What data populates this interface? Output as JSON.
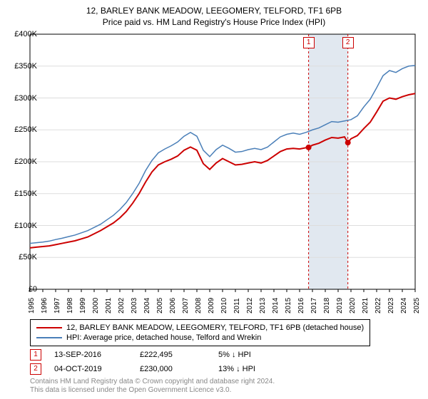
{
  "title_line1": "12, BARLEY BANK MEADOW, LEEGOMERY, TELFORD, TF1 6PB",
  "title_line2": "Price paid vs. HM Land Registry's House Price Index (HPI)",
  "chart": {
    "type": "line",
    "background_color": "#ffffff",
    "grid_color": "#dddddd",
    "y_axis": {
      "min": 0,
      "max": 400000,
      "tick_step": 50000,
      "ticks": [
        0,
        50000,
        100000,
        150000,
        200000,
        250000,
        300000,
        350000,
        400000
      ],
      "tick_labels": [
        "£0",
        "£50K",
        "£100K",
        "£150K",
        "£200K",
        "£250K",
        "£300K",
        "£350K",
        "£400K"
      ],
      "label_fontsize": 11
    },
    "x_axis": {
      "min": 1995,
      "max": 2025,
      "ticks": [
        1995,
        1996,
        1997,
        1998,
        1999,
        2000,
        2001,
        2002,
        2003,
        2004,
        2005,
        2006,
        2007,
        2008,
        2009,
        2010,
        2011,
        2012,
        2013,
        2014,
        2015,
        2016,
        2017,
        2018,
        2019,
        2020,
        2021,
        2022,
        2023,
        2024,
        2025
      ],
      "label_fontsize": 10
    },
    "shaded_region": {
      "start": 2016.7,
      "end": 2019.76,
      "color": "#e1e8f0"
    },
    "sales": [
      {
        "x": 2016.7,
        "label": "1",
        "price_y": 222495
      },
      {
        "x": 2019.76,
        "label": "2",
        "price_y": 230000
      }
    ],
    "series": [
      {
        "name": "property",
        "color": "#cc0000",
        "width": 2,
        "points": [
          [
            1995,
            65000
          ],
          [
            1995.5,
            66000
          ],
          [
            1996,
            67000
          ],
          [
            1996.5,
            68000
          ],
          [
            1997,
            70000
          ],
          [
            1997.5,
            72000
          ],
          [
            1998,
            74000
          ],
          [
            1998.5,
            76000
          ],
          [
            1999,
            79000
          ],
          [
            1999.5,
            82000
          ],
          [
            2000,
            87000
          ],
          [
            2000.5,
            92000
          ],
          [
            2001,
            98000
          ],
          [
            2001.5,
            104000
          ],
          [
            2002,
            112000
          ],
          [
            2002.5,
            122000
          ],
          [
            2003,
            135000
          ],
          [
            2003.5,
            150000
          ],
          [
            2004,
            168000
          ],
          [
            2004.5,
            184000
          ],
          [
            2005,
            195000
          ],
          [
            2005.5,
            200000
          ],
          [
            2006,
            204000
          ],
          [
            2006.5,
            209000
          ],
          [
            2007,
            218000
          ],
          [
            2007.5,
            223000
          ],
          [
            2008,
            218000
          ],
          [
            2008.5,
            197000
          ],
          [
            2009,
            188000
          ],
          [
            2009.5,
            198000
          ],
          [
            2010,
            205000
          ],
          [
            2010.5,
            200000
          ],
          [
            2011,
            195000
          ],
          [
            2011.5,
            196000
          ],
          [
            2012,
            198000
          ],
          [
            2012.5,
            200000
          ],
          [
            2013,
            198000
          ],
          [
            2013.5,
            202000
          ],
          [
            2014,
            209000
          ],
          [
            2014.5,
            216000
          ],
          [
            2015,
            220000
          ],
          [
            2015.5,
            221000
          ],
          [
            2016,
            220000
          ],
          [
            2016.5,
            222000
          ],
          [
            2016.7,
            222495
          ],
          [
            2017,
            226000
          ],
          [
            2017.5,
            229000
          ],
          [
            2018,
            234000
          ],
          [
            2018.5,
            238000
          ],
          [
            2019,
            237000
          ],
          [
            2019.5,
            239000
          ],
          [
            2019.76,
            230000
          ],
          [
            2020,
            236000
          ],
          [
            2020.5,
            241000
          ],
          [
            2021,
            252000
          ],
          [
            2021.5,
            262000
          ],
          [
            2022,
            278000
          ],
          [
            2022.5,
            295000
          ],
          [
            2023,
            300000
          ],
          [
            2023.5,
            298000
          ],
          [
            2024,
            302000
          ],
          [
            2024.5,
            305000
          ],
          [
            2025,
            307000
          ]
        ]
      },
      {
        "name": "hpi",
        "color": "#4a7fb8",
        "width": 1.5,
        "points": [
          [
            1995,
            72000
          ],
          [
            1995.5,
            73000
          ],
          [
            1996,
            74000
          ],
          [
            1996.5,
            75500
          ],
          [
            1997,
            78000
          ],
          [
            1997.5,
            80000
          ],
          [
            1998,
            82500
          ],
          [
            1998.5,
            85000
          ],
          [
            1999,
            88500
          ],
          [
            1999.5,
            92000
          ],
          [
            2000,
            97000
          ],
          [
            2000.5,
            102000
          ],
          [
            2001,
            109000
          ],
          [
            2001.5,
            116000
          ],
          [
            2002,
            125000
          ],
          [
            2002.5,
            136000
          ],
          [
            2003,
            150000
          ],
          [
            2003.5,
            166000
          ],
          [
            2004,
            186000
          ],
          [
            2004.5,
            202000
          ],
          [
            2005,
            214000
          ],
          [
            2005.5,
            220000
          ],
          [
            2006,
            225000
          ],
          [
            2006.5,
            231000
          ],
          [
            2007,
            240000
          ],
          [
            2007.5,
            246000
          ],
          [
            2008,
            240000
          ],
          [
            2008.5,
            218000
          ],
          [
            2009,
            208000
          ],
          [
            2009.5,
            219000
          ],
          [
            2010,
            226000
          ],
          [
            2010.5,
            221000
          ],
          [
            2011,
            215000
          ],
          [
            2011.5,
            216000
          ],
          [
            2012,
            219000
          ],
          [
            2012.5,
            221000
          ],
          [
            2013,
            219000
          ],
          [
            2013.5,
            223000
          ],
          [
            2014,
            231000
          ],
          [
            2014.5,
            239000
          ],
          [
            2015,
            243000
          ],
          [
            2015.5,
            245000
          ],
          [
            2016,
            243000
          ],
          [
            2016.5,
            246000
          ],
          [
            2017,
            250000
          ],
          [
            2017.5,
            253000
          ],
          [
            2018,
            258000
          ],
          [
            2018.5,
            263000
          ],
          [
            2019,
            262000
          ],
          [
            2019.5,
            264000
          ],
          [
            2020,
            266000
          ],
          [
            2020.5,
            272000
          ],
          [
            2021,
            286000
          ],
          [
            2021.5,
            298000
          ],
          [
            2022,
            316000
          ],
          [
            2022.5,
            335000
          ],
          [
            2023,
            343000
          ],
          [
            2023.5,
            340000
          ],
          [
            2024,
            346000
          ],
          [
            2024.5,
            350000
          ],
          [
            2025,
            351000
          ]
        ]
      }
    ]
  },
  "legend": {
    "items": [
      {
        "color": "#cc0000",
        "label": "12, BARLEY BANK MEADOW, LEEGOMERY, TELFORD, TF1 6PB (detached house)"
      },
      {
        "color": "#4a7fb8",
        "label": "HPI: Average price, detached house, Telford and Wrekin"
      }
    ]
  },
  "sale_rows": [
    {
      "marker": "1",
      "date": "13-SEP-2016",
      "price": "£222,495",
      "delta": "5% ↓ HPI"
    },
    {
      "marker": "2",
      "date": "04-OCT-2019",
      "price": "£230,000",
      "delta": "13% ↓ HPI"
    }
  ],
  "footer": {
    "line1": "Contains HM Land Registry data © Crown copyright and database right 2024.",
    "line2": "This data is licensed under the Open Government Licence v3.0."
  }
}
